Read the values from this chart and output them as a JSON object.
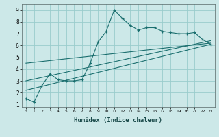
{
  "xlabel": "Humidex (Indice chaleur)",
  "ylabel": "",
  "bg_color": "#cce8e8",
  "grid_color": "#99cccc",
  "line_color": "#1a6e6e",
  "xlim": [
    -0.5,
    23.5
  ],
  "ylim": [
    0.8,
    9.5
  ],
  "xticks": [
    0,
    1,
    2,
    3,
    4,
    5,
    6,
    7,
    8,
    9,
    10,
    11,
    12,
    13,
    14,
    15,
    16,
    17,
    18,
    19,
    20,
    21,
    22,
    23
  ],
  "yticks": [
    1,
    2,
    3,
    4,
    5,
    6,
    7,
    8,
    9
  ],
  "main_x": [
    0,
    1,
    2,
    3,
    4,
    5,
    6,
    7,
    8,
    9,
    10,
    11,
    12,
    13,
    14,
    15,
    16,
    17,
    18,
    19,
    20,
    21,
    22,
    23
  ],
  "main_y": [
    1.5,
    1.2,
    2.6,
    3.6,
    3.1,
    3.0,
    3.0,
    3.1,
    4.5,
    6.3,
    7.2,
    9.0,
    8.3,
    7.7,
    7.3,
    7.5,
    7.5,
    7.2,
    7.1,
    7.0,
    7.0,
    7.1,
    6.5,
    6.1
  ],
  "line1_x": [
    0,
    23
  ],
  "line1_y": [
    2.2,
    6.1
  ],
  "line2_x": [
    0,
    23
  ],
  "line2_y": [
    3.0,
    6.4
  ],
  "line3_x": [
    0,
    23
  ],
  "line3_y": [
    4.5,
    6.2
  ]
}
